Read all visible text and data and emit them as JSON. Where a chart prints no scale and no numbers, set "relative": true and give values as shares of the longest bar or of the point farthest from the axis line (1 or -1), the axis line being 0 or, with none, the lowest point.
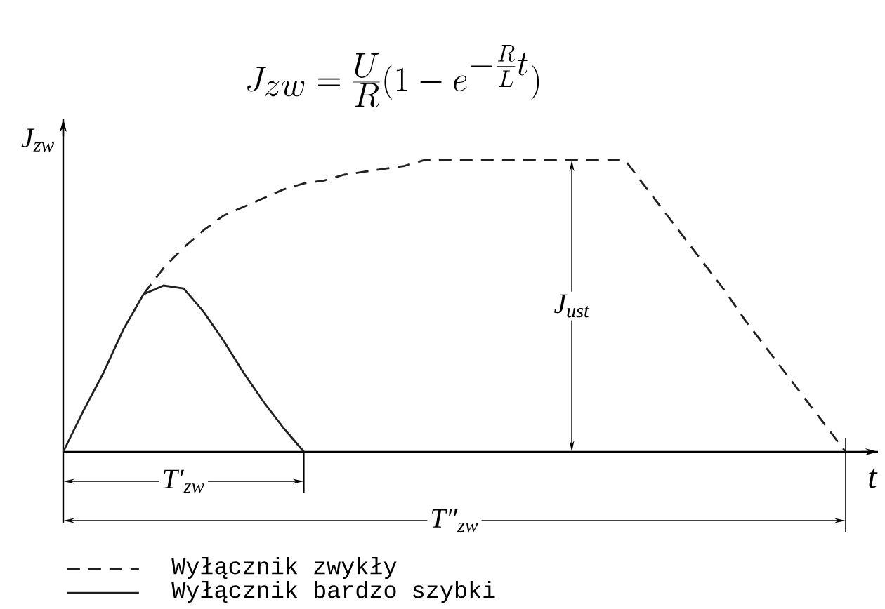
{
  "chart_data": {
    "type": "line",
    "relative": true,
    "xlabel": "t",
    "ylabel": "J$_{zw}$",
    "categories": [
      null,
      null,
      null,
      null,
      null,
      null,
      null,
      null,
      null,
      null,
      null,
      null,
      null,
      null,
      null,
      null,
      null,
      null,
      null,
      null,
      null,
      null,
      null,
      null,
      null,
      null,
      null,
      null,
      null,
      null,
      null,
      null,
      null,
      null,
      null,
      null,
      null,
      null,
      null,
      null
    ],
    "series": [
      {
        "name": "Wyłącznik zwykły",
        "color": "#202020",
        "line_style": "dashed",
        "values": [
          null,
          null,
          null,
          null,
          0.54,
          0.63,
          0.7,
          0.76,
          0.81,
          0.84,
          0.87,
          0.9,
          0.92,
          0.93,
          0.95,
          0.96,
          0.97,
          0.98,
          1,
          1,
          1,
          1,
          1,
          1,
          1,
          1,
          1,
          1,
          1,
          0.91,
          0.82,
          0.73,
          0.64,
          0.55,
          0.45,
          0.36,
          0.27,
          0.18,
          0.09,
          0
        ]
      },
      {
        "name": "Wyłącznik bardzo szybki",
        "color": "#202020",
        "line_style": "solid",
        "values": [
          0,
          0.14,
          0.27,
          0.42,
          0.54,
          0.57,
          0.56,
          0.48,
          0.38,
          0.27,
          0.17,
          0.08,
          0,
          null,
          null,
          null,
          null,
          null,
          null,
          null,
          null,
          null,
          null,
          null,
          null,
          null,
          null,
          null,
          null,
          null,
          null,
          null,
          null,
          null,
          null,
          null,
          null,
          null,
          null,
          null
        ]
      }
    ],
    "legend": "bottom",
    "annotations": [
      "J_{zw} = \\frac{U}{R}(1 - e^{-\\frac{R}{L}t})",
      "J$_{ust}$",
      "T′$_{zw}$",
      "T″$_{zw}$"
    ]
  }
}
